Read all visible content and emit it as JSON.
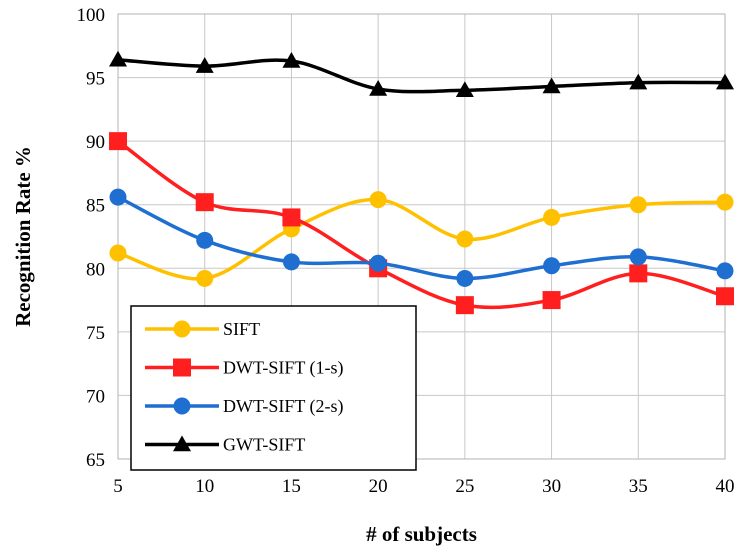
{
  "chart_data": {
    "type": "line",
    "xlabel": "# of subjects",
    "ylabel": "Recognition Rate %",
    "x": [
      5,
      10,
      15,
      20,
      25,
      30,
      35,
      40
    ],
    "x_ticks": [
      "5",
      "10",
      "15",
      "20",
      "25",
      "30",
      "35",
      "40"
    ],
    "y_ticks": [
      "65",
      "70",
      "75",
      "80",
      "85",
      "90",
      "95",
      "100"
    ],
    "ylim": [
      65,
      100
    ],
    "grid": "vertical and horizontal",
    "legend_position": "bottom-left",
    "smooth_lines": true,
    "series": [
      {
        "name": "SIFT",
        "color": "#FFC000",
        "marker": "circle",
        "values": [
          81.2,
          79.2,
          83.1,
          85.4,
          82.3,
          84.0,
          85.0,
          85.2
        ]
      },
      {
        "name": "DWT-SIFT (1-s)",
        "color": "#FF1F1F",
        "marker": "square",
        "values": [
          90.0,
          85.2,
          84.0,
          80.0,
          77.1,
          77.5,
          79.6,
          77.8
        ]
      },
      {
        "name": "DWT-SIFT (2-s)",
        "color": "#1F6FD1",
        "marker": "circle",
        "values": [
          85.6,
          82.2,
          80.5,
          80.4,
          79.2,
          80.2,
          80.9,
          79.8
        ]
      },
      {
        "name": "GWT-SIFT",
        "color": "#000000",
        "marker": "triangle",
        "values": [
          96.4,
          95.9,
          96.3,
          94.1,
          94.0,
          94.3,
          94.6,
          94.6
        ]
      }
    ]
  }
}
